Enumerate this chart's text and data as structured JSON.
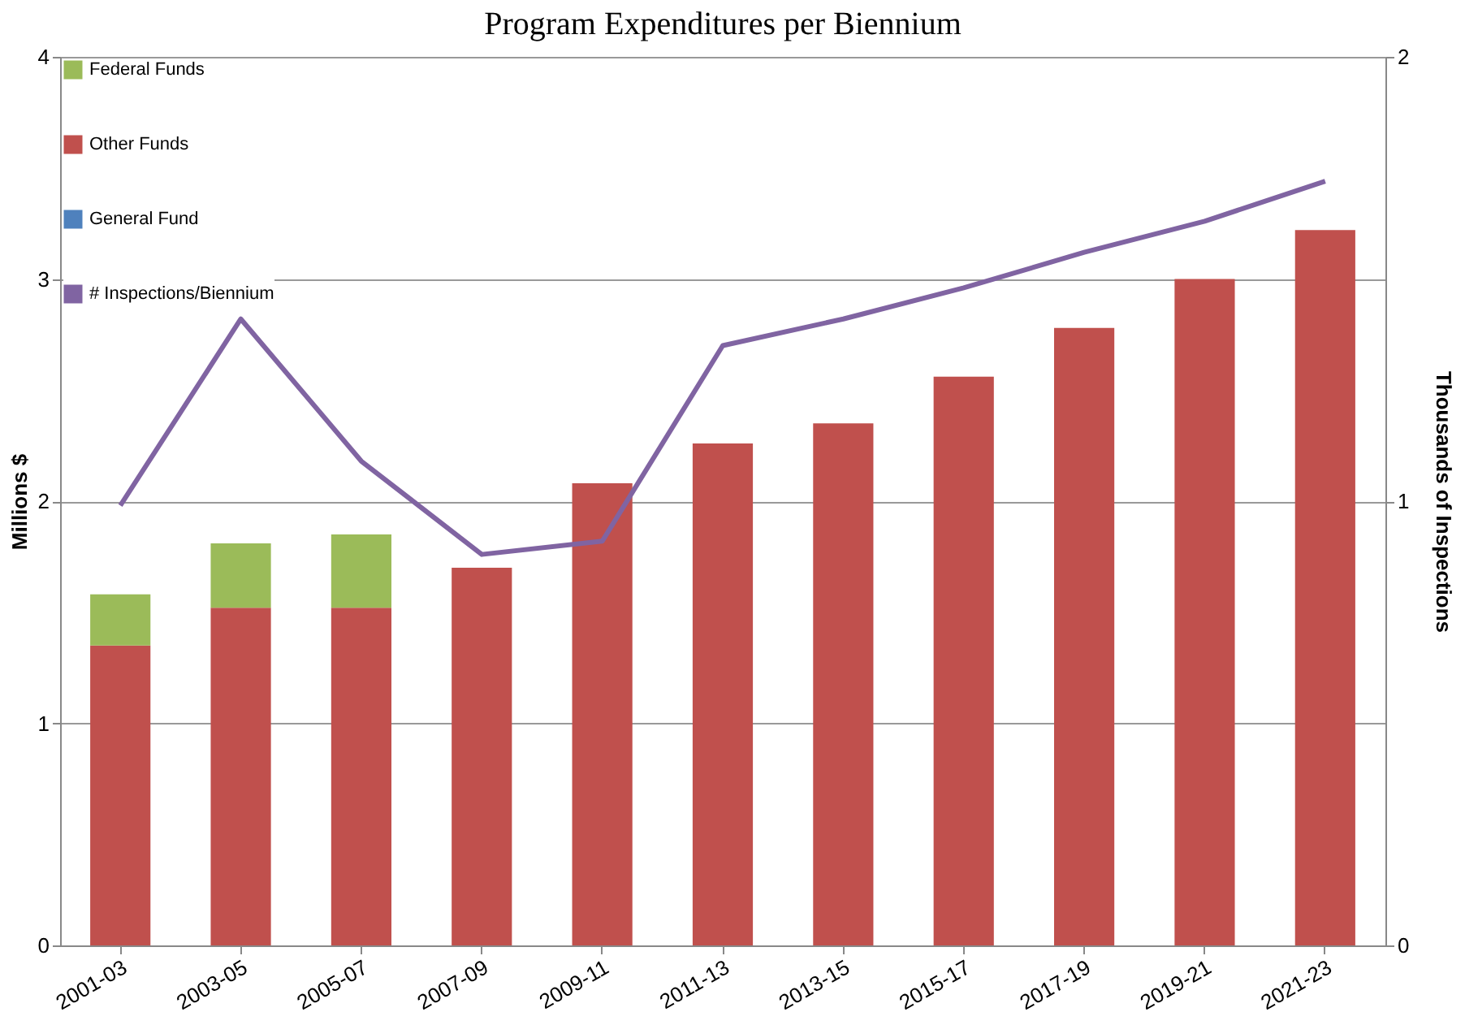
{
  "chart_data": {
    "type": "bar",
    "title": "Program Expenditures per Biennium",
    "ylabel": "Millions $",
    "y2label": "Thousands  of Inspections",
    "categories": [
      "2001-03",
      "2003-05",
      "2005-07",
      "2007-09",
      "2009-11",
      "2011-13",
      "2013-15",
      "2015-17",
      "2017-19",
      "2019-21",
      "2021-23"
    ],
    "stacked": true,
    "series": [
      {
        "name": "General Fund",
        "color": "#4f81bd",
        "values": [
          0,
          0,
          0,
          0,
          0,
          0,
          0,
          0,
          0,
          0,
          0
        ]
      },
      {
        "name": "Other Funds",
        "color": "#c0504d",
        "values": [
          1.35,
          1.52,
          1.52,
          1.7,
          2.08,
          2.26,
          2.35,
          2.56,
          2.78,
          3.0,
          3.22
        ]
      },
      {
        "name": "Federal Funds",
        "color": "#9bbb59",
        "values": [
          0.23,
          0.29,
          0.33,
          0,
          0,
          0,
          0,
          0,
          0,
          0,
          0
        ]
      },
      {
        "name": "# Inspections/Biennium",
        "color": "#8064a2",
        "type": "line",
        "axis": "y2",
        "values": [
          0.99,
          1.41,
          1.09,
          0.88,
          0.91,
          1.35,
          1.41,
          1.48,
          1.56,
          1.63,
          1.72
        ]
      }
    ],
    "ylim": [
      0,
      4
    ],
    "yticks": [
      0,
      1,
      2,
      3,
      4
    ],
    "y2lim": [
      0,
      2
    ],
    "y2ticks": [
      0,
      1,
      2
    ],
    "grid": "y",
    "legend": "top left",
    "marker": "none",
    "line_style": "solid"
  }
}
